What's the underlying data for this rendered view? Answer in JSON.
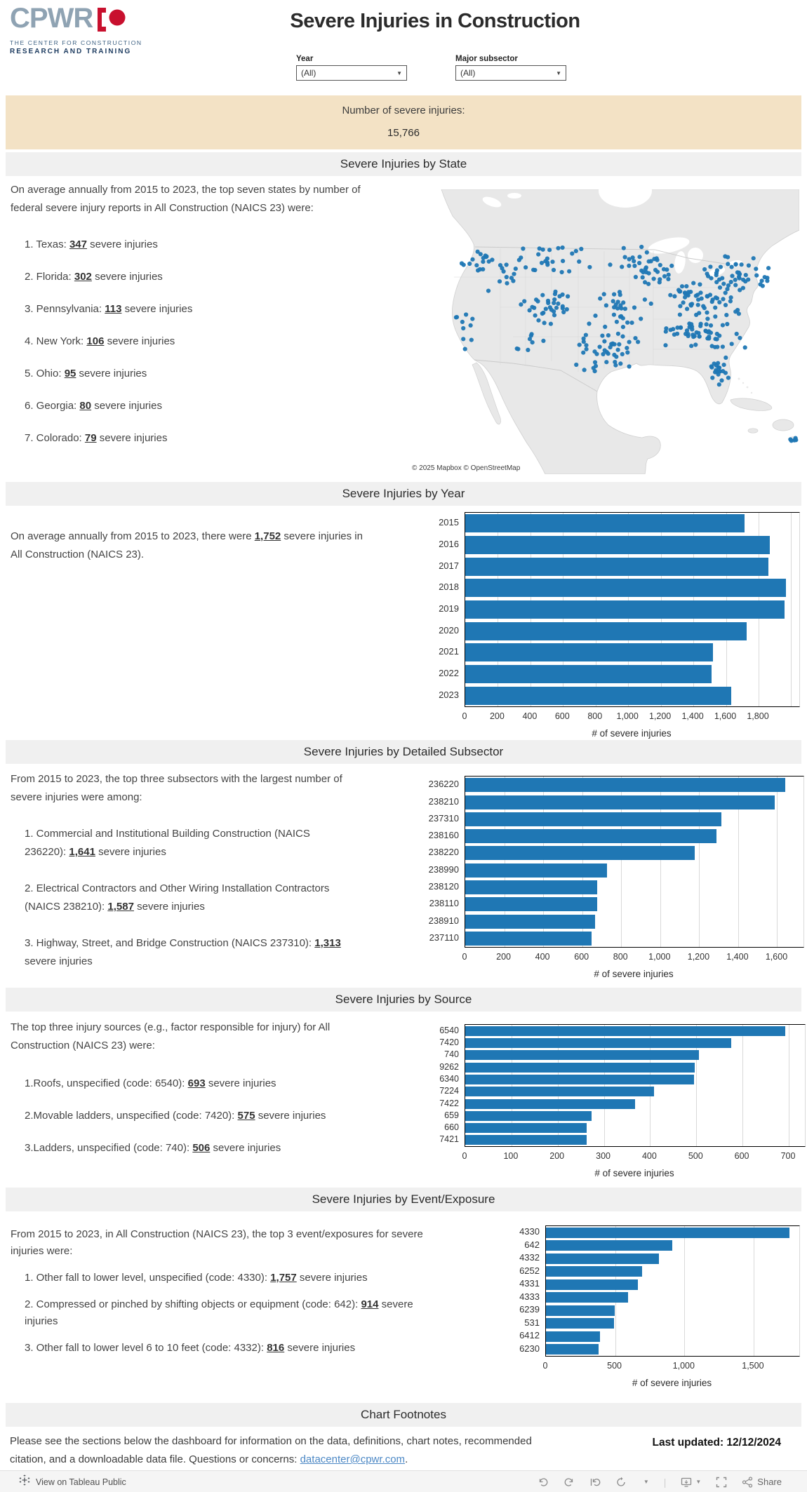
{
  "header": {
    "brand": "CPWR",
    "brand_tagline1": "THE CENTER FOR CONSTRUCTION",
    "brand_tagline2": "RESEARCH AND TRAINING",
    "title": "Severe Injuries in Construction",
    "filters": [
      {
        "label": "Year",
        "value": "(All)"
      },
      {
        "label": "Major subsector",
        "value": "(All)"
      }
    ]
  },
  "kpi": {
    "label": "Number of severe injuries:",
    "value": "15,766"
  },
  "state_section": {
    "title": "Severe Injuries by State",
    "intro": "On average annually from 2015 to 2023, the top seven states by number of federal severe injury reports in All Construction (NAICS 23) were:",
    "items": [
      {
        "pre": "1. Texas: ",
        "num": "347",
        "post": " severe injuries"
      },
      {
        "pre": "2. Florida: ",
        "num": "302",
        "post": " severe injuries"
      },
      {
        "pre": "3. Pennsylvania: ",
        "num": "113",
        "post": " severe injuries"
      },
      {
        "pre": "4. New York: ",
        "num": "106",
        "post": " severe injuries"
      },
      {
        "pre": "5. Ohio: ",
        "num": "95",
        "post": " severe injuries"
      },
      {
        "pre": "6. Georgia: ",
        "num": "80",
        "post": " severe injuries"
      },
      {
        "pre": "7. Colorado: ",
        "num": "79",
        "post": " severe injuries"
      }
    ],
    "map_attribution": "© 2025 Mapbox  © OpenStreetMap"
  },
  "year_section": {
    "title": "Severe Injuries by Year",
    "intro_pre": "On average annually from 2015 to 2023, there were ",
    "intro_num": "1,752",
    "intro_post": " severe injuries in All Construction (NAICS 23)."
  },
  "subsector_section": {
    "title": "Severe Injuries by Detailed Subsector",
    "intro": "From 2015 to 2023, the top three subsectors with the largest number of severe injuries were among:",
    "items": [
      {
        "pre": "1. Commercial and Institutional Building Construction (NAICS 236220): ",
        "num": "1,641",
        "post": " severe injuries"
      },
      {
        "pre": "2. Electrical Contractors and Other Wiring Installation Contractors (NAICS 238210): ",
        "num": "1,587",
        "post": " severe injuries"
      },
      {
        "pre": "3. Highway, Street, and Bridge Construction (NAICS 237310): ",
        "num": "1,313",
        "post": " severe injuries"
      }
    ]
  },
  "source_section": {
    "title": "Severe Injuries by Source",
    "intro": "The top three injury sources (e.g., factor responsible for injury) for All Construction (NAICS 23) were:",
    "items": [
      {
        "pre": "1.Roofs, unspecified (code: 6540): ",
        "num": "693",
        "post": " severe injuries"
      },
      {
        "pre": "2.Movable ladders, unspecified (code: 7420): ",
        "num": "575",
        "post": " severe injuries"
      },
      {
        "pre": "3.Ladders, unspecified (code: 740): ",
        "num": "506",
        "post": " severe injuries"
      }
    ]
  },
  "event_section": {
    "title": "Severe Injuries by Event/Exposure",
    "intro": "From 2015 to 2023, in All Construction (NAICS 23), the top 3 event/exposures for severe injuries were:",
    "items": [
      {
        "pre": "1. Other fall to lower level, unspecified (code: 4330): ",
        "num": "1,757",
        "post": " severe injuries"
      },
      {
        "pre": "2. Compressed or pinched by shifting objects or equipment (code: 642): ",
        "num": "914",
        "post": " severe injuries"
      },
      {
        "pre": "3. Other fall to lower level 6 to 10 feet (code: 4332): ",
        "num": "816",
        "post": " severe injuries"
      }
    ]
  },
  "footnotes": {
    "title": "Chart Footnotes",
    "text_pre": "Please see the sections below the dashboard for information on the data, definitions, chart notes, recommended citation, and a downloadable data file. Questions or concerns: ",
    "link": "datacenter@cpwr.com",
    "text_post": ".",
    "last_updated": "Last updated: 12/12/2024"
  },
  "toolbar": {
    "view_label": "View on Tableau Public",
    "share_label": "Share"
  },
  "colors": {
    "bar": "#1f77b4",
    "dot": "#1f77b4",
    "banner_bg": "#f3e2c5",
    "section_header_bg": "#f0f0f0",
    "brand_gray_blue": "#8fa3b3",
    "brand_red": "#c8102e",
    "link": "#4c88c5"
  },
  "chart_data": [
    {
      "name": "year",
      "type": "bar",
      "orientation": "horizontal",
      "title": "Severe Injuries by Year",
      "categories": [
        "2015",
        "2016",
        "2017",
        "2018",
        "2019",
        "2020",
        "2021",
        "2022",
        "2023"
      ],
      "values": [
        1715,
        1870,
        1860,
        1970,
        1960,
        1725,
        1522,
        1512,
        1632
      ],
      "xlabel": "# of severe injuries",
      "xticks": [
        0,
        200,
        400,
        600,
        800,
        1000,
        1200,
        1400,
        1600,
        1800
      ],
      "unlabeled_gridlines": [
        2000
      ],
      "xlim": [
        0,
        2050
      ],
      "grid": true
    },
    {
      "name": "subsector",
      "type": "bar",
      "orientation": "horizontal",
      "title": "Severe Injuries by Detailed Subsector",
      "categories": [
        "236220",
        "238210",
        "237310",
        "238160",
        "238220",
        "238990",
        "238120",
        "238110",
        "238910",
        "237110"
      ],
      "values": [
        1641,
        1587,
        1313,
        1287,
        1177,
        728,
        678,
        675,
        665,
        647
      ],
      "xlabel": "# of severe injuries",
      "xticks": [
        0,
        200,
        400,
        600,
        800,
        1000,
        1200,
        1400,
        1600
      ],
      "unlabeled_gridlines": [],
      "xlim": [
        0,
        1735
      ],
      "grid": true
    },
    {
      "name": "source",
      "type": "bar",
      "orientation": "horizontal",
      "title": "Severe Injuries by Source",
      "categories": [
        "6540",
        "7420",
        "740",
        "9262",
        "6340",
        "7224",
        "7422",
        "659",
        "660",
        "7421"
      ],
      "values": [
        693,
        575,
        506,
        497,
        495,
        408,
        368,
        274,
        263,
        262
      ],
      "xlabel": "# of severe injuries",
      "xticks": [
        0,
        100,
        200,
        300,
        400,
        500,
        600,
        700
      ],
      "unlabeled_gridlines": [],
      "xlim": [
        0,
        735
      ],
      "grid": true
    },
    {
      "name": "event",
      "type": "bar",
      "orientation": "horizontal",
      "title": "Severe Injuries by Event/Exposure",
      "categories": [
        "4330",
        "642",
        "4332",
        "6252",
        "4331",
        "4333",
        "6239",
        "531",
        "6412",
        "6230"
      ],
      "values": [
        1757,
        914,
        816,
        695,
        662,
        592,
        495,
        490,
        390,
        378
      ],
      "xlabel": "# of severe injuries",
      "xticks": [
        0,
        500,
        1000,
        1500
      ],
      "unlabeled_gridlines": [],
      "xlim": [
        0,
        1830
      ],
      "grid": true
    }
  ]
}
